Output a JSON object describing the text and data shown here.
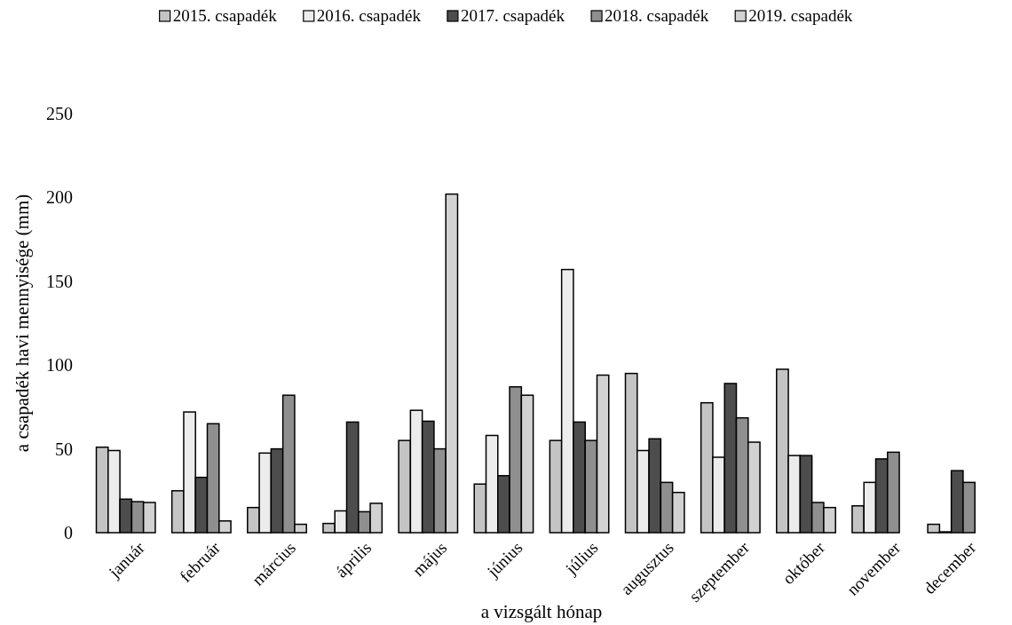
{
  "chart_data": {
    "type": "bar",
    "xlabel": "a vizsgált hónap",
    "ylabel": "a csapadék havi mennyisége (mm)",
    "categories": [
      "január",
      "február",
      "március",
      "április",
      "május",
      "június",
      "július",
      "augusztus",
      "szeptember",
      "október",
      "november",
      "december"
    ],
    "series": [
      {
        "name": "2015. csapadék",
        "color": "#c4c4c4",
        "values": [
          51,
          25,
          15,
          5.5,
          55,
          29,
          55,
          95,
          77.5,
          97.5,
          16,
          5
        ]
      },
      {
        "name": "2016. csapadék",
        "color": "#ececec",
        "values": [
          49,
          72,
          47.5,
          13,
          73,
          58,
          157,
          49,
          45,
          46,
          30,
          0.5
        ]
      },
      {
        "name": "2017. csapadék",
        "color": "#4d4d4d",
        "values": [
          20,
          33,
          50,
          66,
          66.5,
          34,
          66,
          56,
          89,
          46,
          44,
          37
        ]
      },
      {
        "name": "2018. csapadék",
        "color": "#8f8f8f",
        "values": [
          18.5,
          65,
          82,
          12.5,
          50,
          87,
          55,
          30,
          68.5,
          18,
          48,
          30
        ]
      },
      {
        "name": "2019. csapadék",
        "color": "#d2d2d2",
        "values": [
          18,
          7,
          5,
          17.5,
          202,
          82,
          94,
          24,
          54,
          15,
          null,
          null
        ]
      }
    ],
    "ylim": [
      0,
      250
    ],
    "yticks": [
      0,
      50,
      100,
      150,
      200,
      250
    ],
    "legend": "top"
  }
}
